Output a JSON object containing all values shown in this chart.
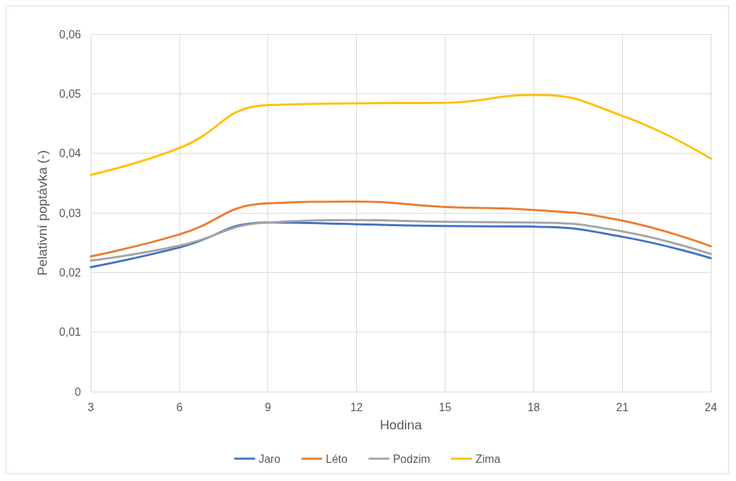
{
  "chart_data": {
    "type": "line",
    "xlabel": "Hodina",
    "ylabel": "Pelativní poptávka (-)",
    "x": [
      3,
      6,
      9,
      12,
      15,
      18,
      21,
      24
    ],
    "xlim": [
      3,
      24
    ],
    "xticks": [
      3,
      6,
      9,
      12,
      15,
      18,
      21,
      24
    ],
    "ylim": [
      0,
      0.06
    ],
    "yticks": [
      {
        "value": 0,
        "label": "0"
      },
      {
        "value": 0.01,
        "label": "0,01"
      },
      {
        "value": 0.02,
        "label": "0,02"
      },
      {
        "value": 0.03,
        "label": "0,03"
      },
      {
        "value": 0.04,
        "label": "0,04"
      },
      {
        "value": 0.05,
        "label": "0,05"
      },
      {
        "value": 0.06,
        "label": "0,06"
      }
    ],
    "grid": true,
    "legend": "bottom",
    "marker": "none",
    "line_style": "solid",
    "series": [
      {
        "name": "Jaro",
        "color": "#4472c4",
        "values": [
          0.0209,
          0.0242,
          0.0284,
          0.0281,
          0.0278,
          0.0277,
          0.026,
          0.0224
        ]
      },
      {
        "name": "Léto",
        "color": "#ed7d31",
        "values": [
          0.0227,
          0.0264,
          0.0316,
          0.0319,
          0.031,
          0.0305,
          0.0287,
          0.0244
        ]
      },
      {
        "name": "Podzim",
        "color": "#a5a5a5",
        "values": [
          0.022,
          0.0245,
          0.0284,
          0.0288,
          0.0285,
          0.0284,
          0.0269,
          0.0231
        ]
      },
      {
        "name": "Zima",
        "color": "#ffc000",
        "values": [
          0.0364,
          0.0409,
          0.0481,
          0.0484,
          0.0485,
          0.0498,
          0.0463,
          0.0391
        ]
      }
    ]
  }
}
